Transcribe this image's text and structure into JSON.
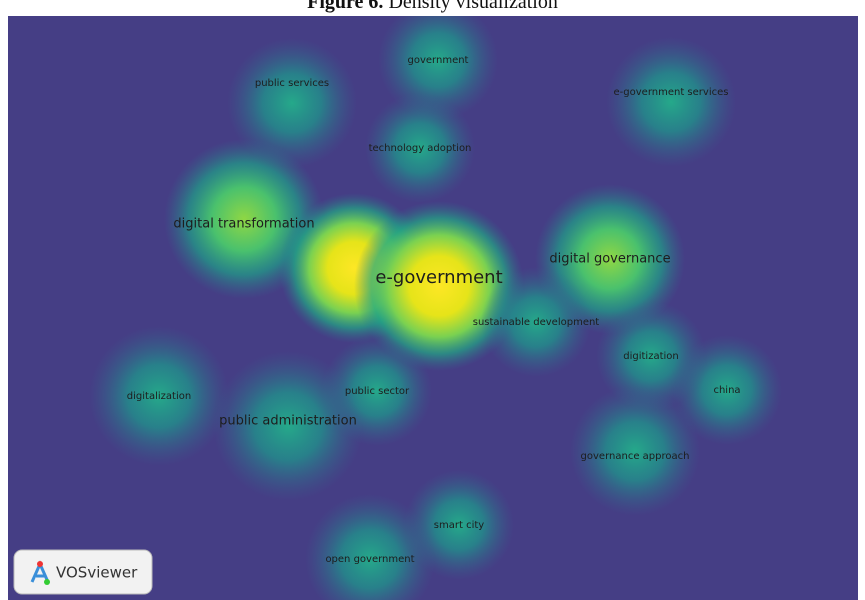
{
  "header": {
    "title_bold": "Figure 6.",
    "title_rest": "Density visualization"
  },
  "nodes": [
    {
      "label": "government"
    },
    {
      "label": "public services"
    },
    {
      "label": "e-government services"
    },
    {
      "label": "technology adoption"
    },
    {
      "label": "digital transformation"
    },
    {
      "label": "e-government"
    },
    {
      "label": "digital governance"
    },
    {
      "label": "sustainable development"
    },
    {
      "label": "digitization"
    },
    {
      "label": "china"
    },
    {
      "label": "digitalization"
    },
    {
      "label": "public sector"
    },
    {
      "label": "public administration"
    },
    {
      "label": "governance approach"
    },
    {
      "label": "smart city"
    },
    {
      "label": "open government"
    }
  ],
  "logo": {
    "label": "VOSviewer"
  }
}
